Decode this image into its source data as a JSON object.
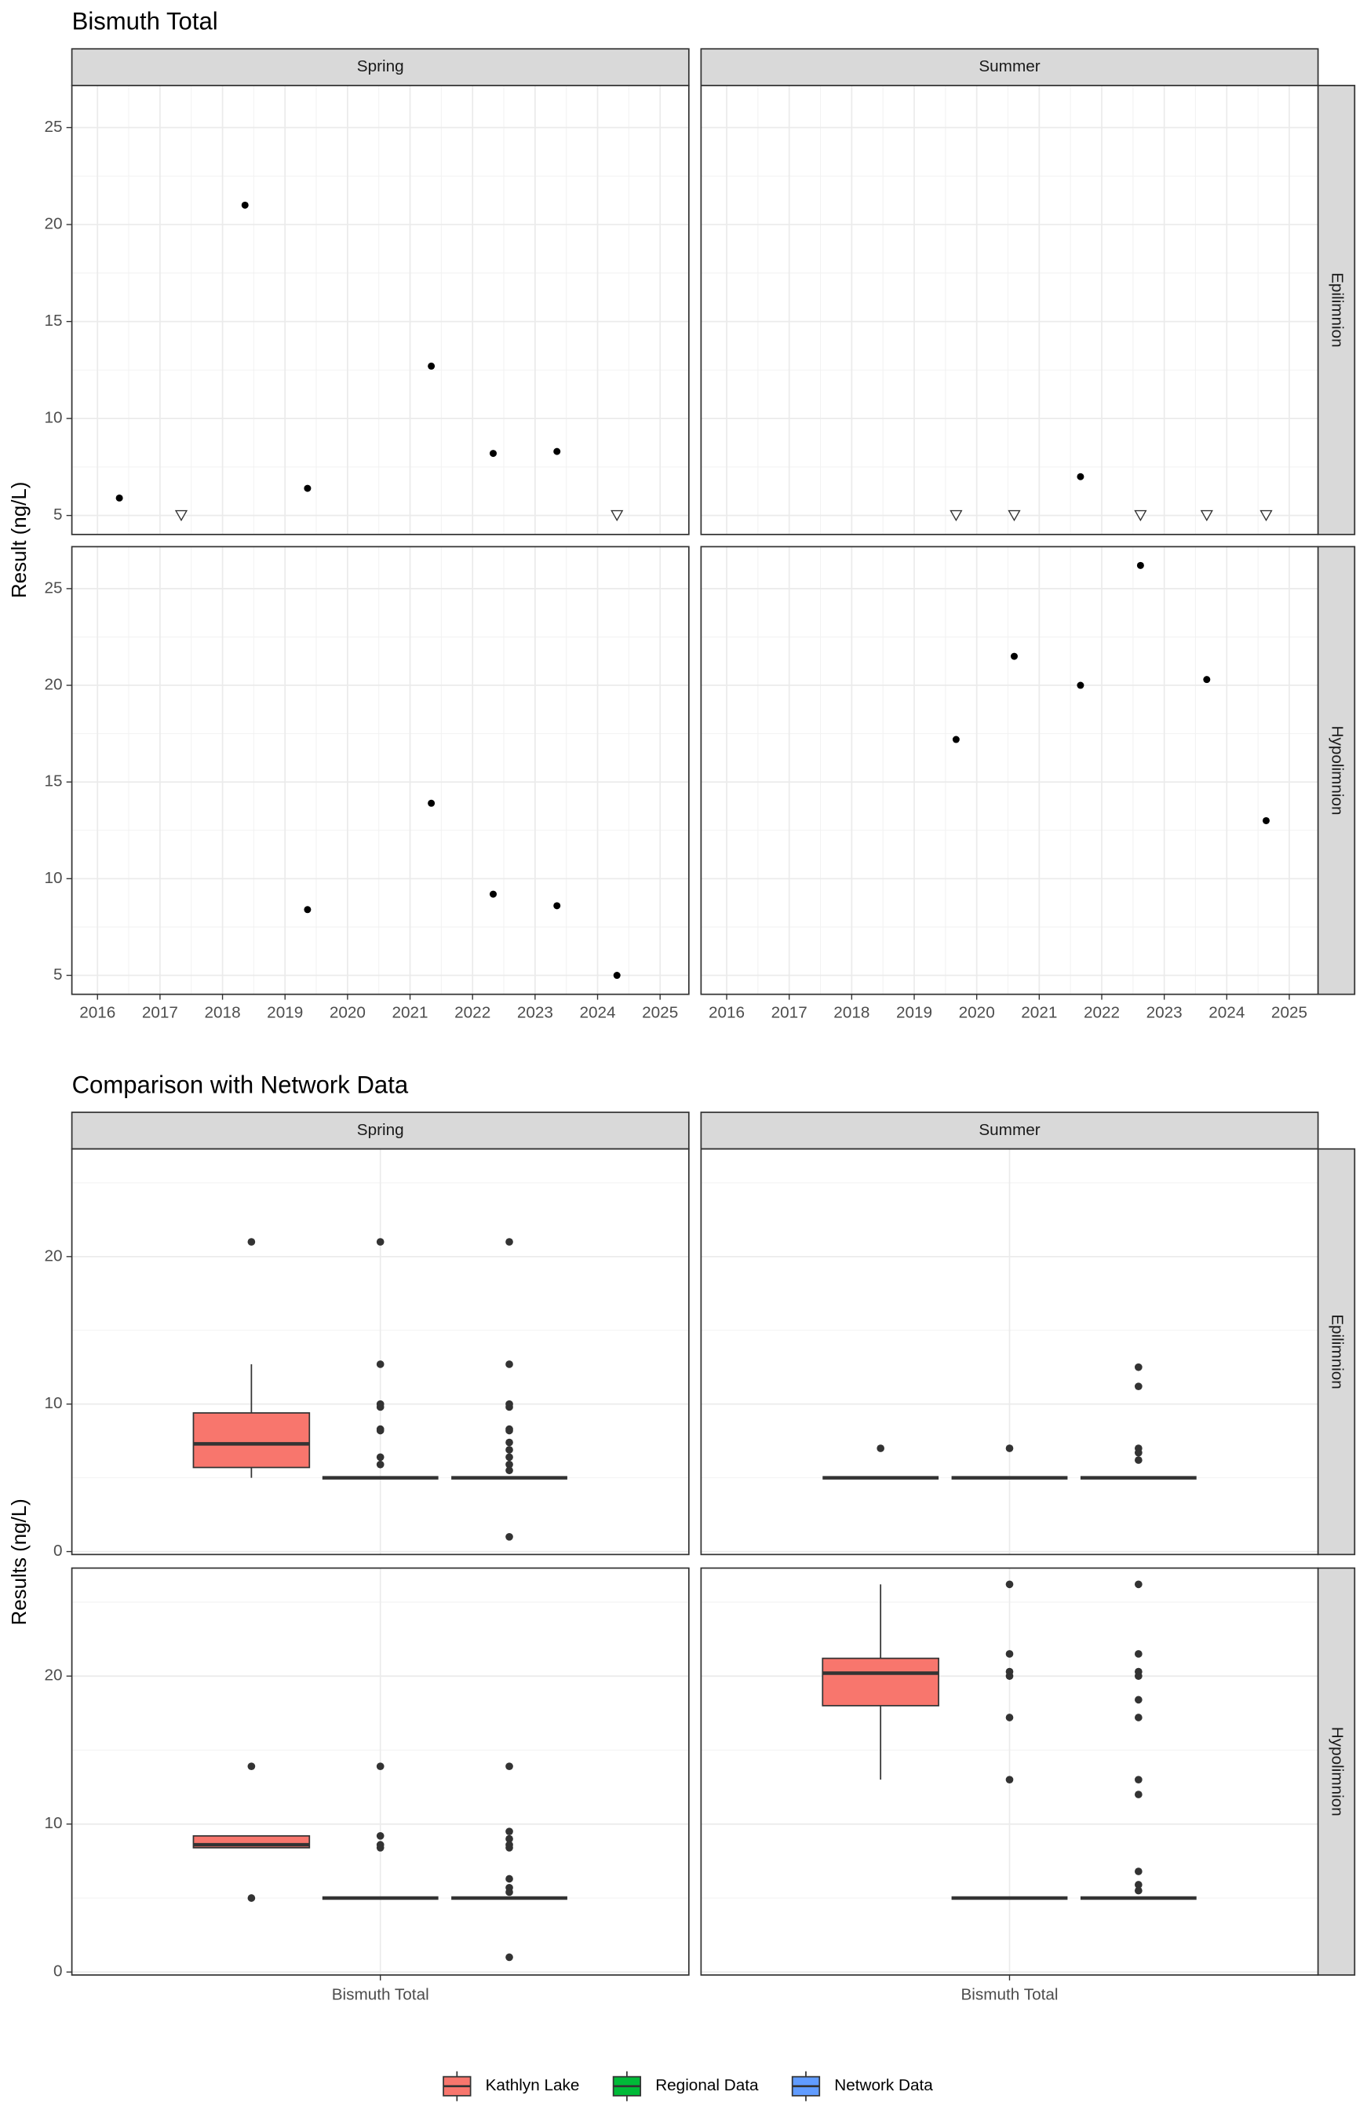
{
  "chart_data": [
    {
      "type": "scatter",
      "title": "Bismuth Total",
      "ylabel": "Result (ng/L)",
      "facet_cols": [
        "Spring",
        "Summer"
      ],
      "facet_rows": [
        "Epilimnion",
        "Hypolimnion"
      ],
      "xlim": [
        2015.59,
        2025.46
      ],
      "xticks": [
        2016,
        2017,
        2018,
        2019,
        2020,
        2021,
        2022,
        2023,
        2024,
        2025
      ],
      "ylim": [
        4.02,
        27.17
      ],
      "yticks": [
        5,
        10,
        15,
        20,
        25
      ],
      "grid": true,
      "color": "#000000",
      "panels": [
        {
          "x": [
            2016.35,
            2017.34,
            2018.36,
            2019.36,
            2021.34,
            2022.33,
            2023.35,
            2024.31
          ],
          "y": [
            5.9,
            5.0,
            21.0,
            6.4,
            12.7,
            8.2,
            8.3,
            5.0
          ],
          "below_detection": [
            false,
            true,
            false,
            false,
            false,
            false,
            false,
            true
          ]
        },
        {
          "x": [
            2019.67,
            2020.6,
            2021.66,
            2022.62,
            2023.68,
            2024.63
          ],
          "y": [
            5.0,
            5.0,
            7.0,
            5.0,
            5.0,
            5.0
          ],
          "below_detection": [
            true,
            true,
            false,
            true,
            true,
            true
          ]
        },
        {
          "x": [
            2019.36,
            2021.34,
            2022.33,
            2023.35,
            2024.31
          ],
          "y": [
            8.4,
            13.9,
            9.2,
            8.6,
            5.0
          ],
          "below_detection": [
            false,
            false,
            false,
            false,
            false
          ]
        },
        {
          "x": [
            2019.67,
            2020.6,
            2021.66,
            2022.62,
            2023.68,
            2024.63
          ],
          "y": [
            17.2,
            21.5,
            20.0,
            26.2,
            20.3,
            13.0
          ],
          "below_detection": [
            false,
            false,
            false,
            false,
            false,
            false
          ]
        }
      ]
    },
    {
      "type": "box",
      "title": "Comparison with Network Data",
      "ylabel": "Results (ng/L)",
      "facet_cols": [
        "Spring",
        "Summer"
      ],
      "facet_rows": [
        "Epilimnion",
        "Hypolimnion"
      ],
      "categories": [
        "Bismuth Total"
      ],
      "ylim": [
        -0.2,
        27.3
      ],
      "yticks": [
        0,
        10,
        20
      ],
      "grid": true,
      "legend": "bottom",
      "series": [
        {
          "name": "Kathlyn Lake",
          "color": "#F8766D"
        },
        {
          "name": "Regional Data",
          "color": "#00BA38"
        },
        {
          "name": "Network Data",
          "color": "#619CFF"
        }
      ],
      "panels": [
        {
          "boxes": [
            {
              "low": 5.0,
              "q1": 5.7,
              "median": 7.3,
              "q3": 9.4,
              "high": 12.7,
              "outliers": [
                21.0
              ]
            },
            {
              "low": 5.0,
              "q1": 5.0,
              "median": 5.0,
              "q3": 5.0,
              "high": 5.0,
              "outliers": [
                21.0,
                12.7,
                10.0,
                9.8,
                8.3,
                8.2,
                6.4,
                5.9
              ]
            },
            {
              "low": 5.0,
              "q1": 5.0,
              "median": 5.0,
              "q3": 5.0,
              "high": 5.0,
              "outliers": [
                21.0,
                12.7,
                10.0,
                9.8,
                8.3,
                8.2,
                7.4,
                6.9,
                6.4,
                5.9,
                5.5,
                1.0
              ]
            }
          ]
        },
        {
          "boxes": [
            {
              "low": 5.0,
              "q1": 5.0,
              "median": 5.0,
              "q3": 5.0,
              "high": 5.0,
              "outliers": [
                7.0
              ]
            },
            {
              "low": 5.0,
              "q1": 5.0,
              "median": 5.0,
              "q3": 5.0,
              "high": 5.0,
              "outliers": [
                7.0
              ]
            },
            {
              "low": 5.0,
              "q1": 5.0,
              "median": 5.0,
              "q3": 5.0,
              "high": 5.0,
              "outliers": [
                12.5,
                11.2,
                7.0,
                6.7,
                6.2
              ]
            }
          ]
        },
        {
          "boxes": [
            {
              "low": 8.4,
              "q1": 8.4,
              "median": 8.6,
              "q3": 9.2,
              "high": 9.2,
              "outliers": [
                13.9,
                5.0
              ]
            },
            {
              "low": 5.0,
              "q1": 5.0,
              "median": 5.0,
              "q3": 5.0,
              "high": 5.0,
              "outliers": [
                13.9,
                9.2,
                8.6,
                8.4
              ]
            },
            {
              "low": 5.0,
              "q1": 5.0,
              "median": 5.0,
              "q3": 5.0,
              "high": 5.0,
              "outliers": [
                13.9,
                9.5,
                9.0,
                8.6,
                8.4,
                6.3,
                5.7,
                5.4,
                1.0
              ]
            }
          ]
        },
        {
          "boxes": [
            {
              "low": 13.0,
              "q1": 18.0,
              "median": 20.2,
              "q3": 21.2,
              "high": 26.2,
              "outliers": []
            },
            {
              "low": 5.0,
              "q1": 5.0,
              "median": 5.0,
              "q3": 5.0,
              "high": 5.0,
              "outliers": [
                26.2,
                21.5,
                20.3,
                20.0,
                17.2,
                13.0
              ]
            },
            {
              "low": 5.0,
              "q1": 5.0,
              "median": 5.0,
              "q3": 5.0,
              "high": 5.0,
              "outliers": [
                26.2,
                21.5,
                20.3,
                20.0,
                18.4,
                17.2,
                13.0,
                12.0,
                6.8,
                5.9,
                5.5
              ]
            }
          ]
        }
      ]
    }
  ]
}
